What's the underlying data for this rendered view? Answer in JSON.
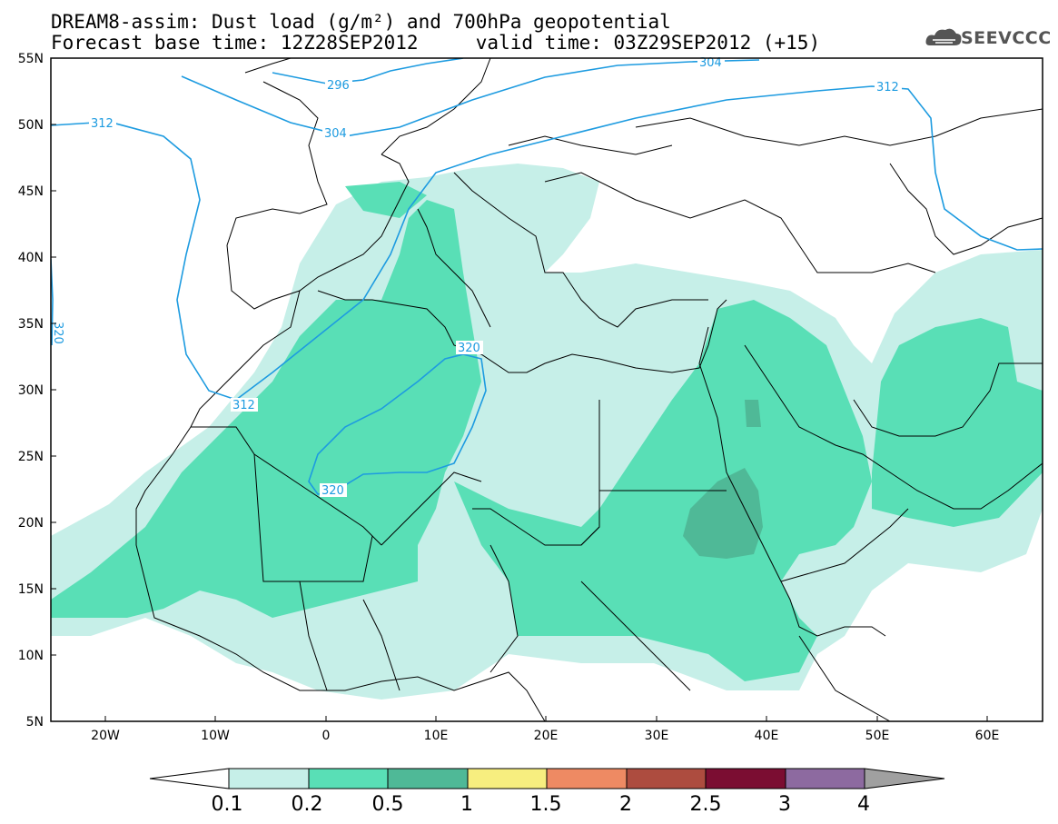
{
  "header": {
    "title_line1": "DREAM8-assim: Dust load (g/m²) and 700hPa geopotential",
    "title_line2": "Forecast base time: 12Z28SEP2012     valid time: 03Z29SEP2012 (+15)",
    "logo_text": "SEEVCCC"
  },
  "axes": {
    "lat_ticks": [
      "55N",
      "50N",
      "45N",
      "40N",
      "35N",
      "30N",
      "25N",
      "20N",
      "15N",
      "10N",
      "5N"
    ],
    "lon_ticks": [
      "20W",
      "10W",
      "0",
      "10E",
      "20E",
      "30E",
      "40E",
      "50E",
      "60E"
    ]
  },
  "contours": {
    "color": "#1d9be0",
    "labels": [
      "312",
      "296",
      "304",
      "304",
      "312",
      "320",
      "320",
      "312",
      "320"
    ]
  },
  "colorbar": {
    "labels": [
      "0.1",
      "0.2",
      "0.5",
      "1",
      "1.5",
      "2",
      "2.5",
      "3",
      "4"
    ],
    "colors": [
      "#c6efe8",
      "#59dfb6",
      "#4fb997",
      "#f7ee7f",
      "#ee8a63",
      "#ad4c3f",
      "#7b0d32",
      "#8d6aa0",
      "#a0a0a0"
    ]
  },
  "dust_colors": {
    "light": "#c6efe8",
    "medium": "#59dfb6",
    "dark": "#4fb997"
  }
}
